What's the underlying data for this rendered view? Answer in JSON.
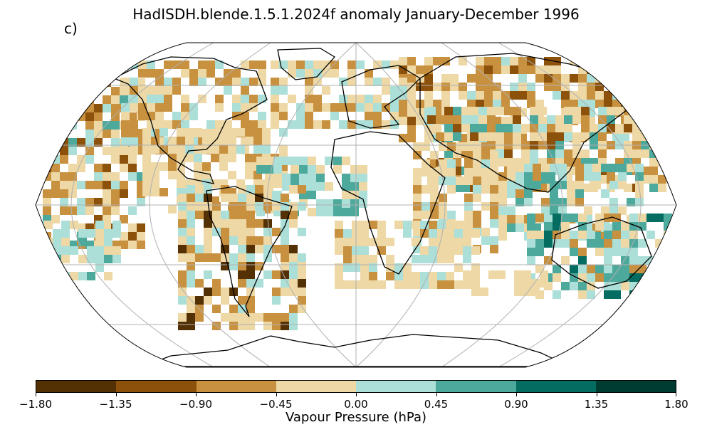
{
  "title": "HadISDH.blende.1.5.1.2024f anomaly January-December 1996",
  "panel_label": "c)",
  "colorbar": {
    "label": "Vapour Pressure (hPa)",
    "ticks": [
      "−1.80",
      "−1.35",
      "−0.90",
      "−0.45",
      "0.00",
      "0.45",
      "0.90",
      "1.35",
      "1.80"
    ],
    "colors": [
      "#543005",
      "#8c510a",
      "#c8913f",
      "#edd8a6",
      "#abdfd8",
      "#4ea99d",
      "#046c60",
      "#003c30"
    ]
  },
  "map": {
    "projection": "Robinson",
    "grid_color": "#b0b0b0",
    "coast_color": "#000000"
  }
}
